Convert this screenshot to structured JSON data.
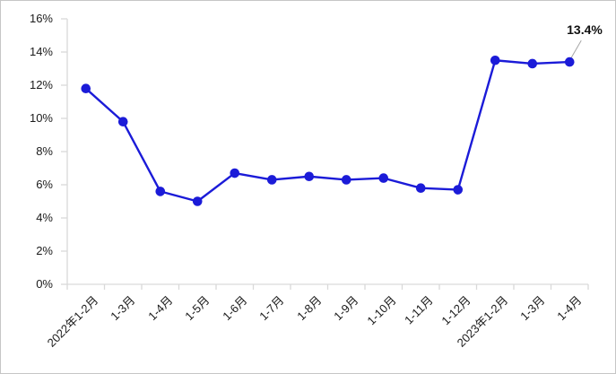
{
  "figure": {
    "background": "#ffffff",
    "border_color": "#c6c6c6"
  },
  "chart_data": {
    "type": "line",
    "title": "",
    "xlabel": "",
    "ylabel": "",
    "categories": [
      "2022年1-2月",
      "1-3月",
      "1-4月",
      "1-5月",
      "1-6月",
      "1-7月",
      "1-8月",
      "1-9月",
      "1-10月",
      "1-11月",
      "1-12月",
      "2023年1-2月",
      "1-3月",
      "1-4月"
    ],
    "values": [
      11.8,
      9.8,
      5.6,
      5.0,
      6.7,
      6.3,
      6.5,
      6.3,
      6.4,
      5.8,
      5.7,
      13.5,
      13.3,
      13.4
    ],
    "unit": "%",
    "ylim": [
      0,
      16
    ],
    "ytick_step": 2,
    "ytick_labels": [
      "0%",
      "2%",
      "4%",
      "6%",
      "8%",
      "10%",
      "12%",
      "14%",
      "16%"
    ],
    "grid": false,
    "legend": "none",
    "line_color": "#1b1bd8",
    "marker": "circle",
    "marker_color": "#1b1bd8",
    "axis_color": "#d9d9d9",
    "leader_line_color": "#a6a6a6",
    "annotation": {
      "text": "13.4%",
      "point_index": 13
    }
  }
}
